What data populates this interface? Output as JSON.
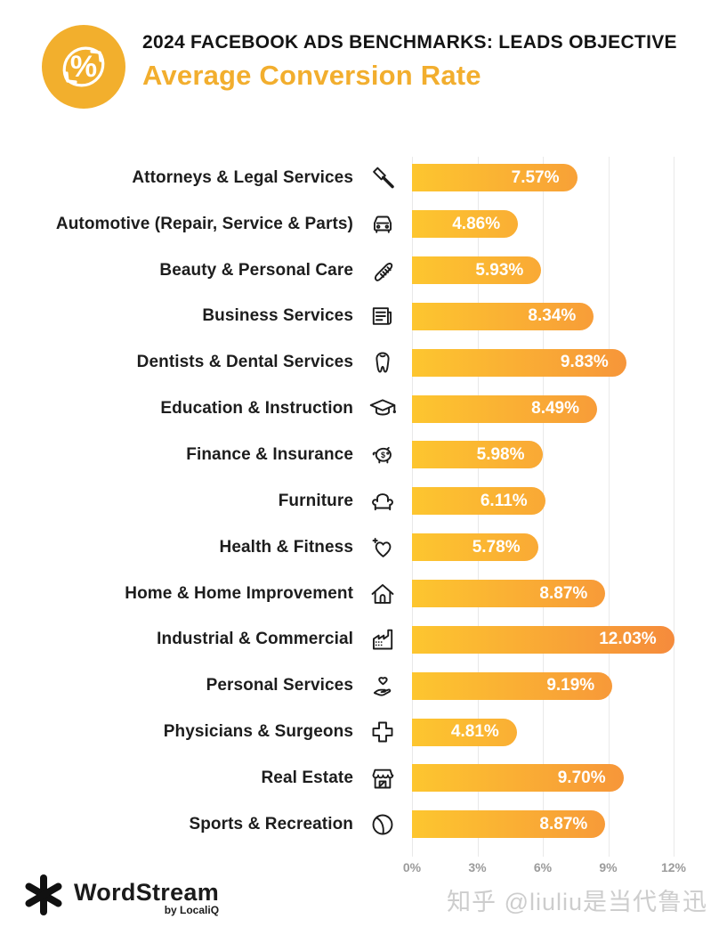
{
  "header": {
    "kicker": "2024 FACEBOOK ADS BENCHMARKS: LEADS OBJECTIVE",
    "title": "Average Conversion Rate",
    "badge_icon": "percent-refresh-icon",
    "accent_color": "#F2AE2E"
  },
  "chart_data": {
    "type": "bar",
    "orientation": "horizontal",
    "title": "Average Conversion Rate",
    "xlabel": "",
    "ylabel": "",
    "xlim": [
      0,
      12
    ],
    "grid": true,
    "bar_color_start": "#FDC62F",
    "bar_color_end": "#F58B3C",
    "x_ticks": [
      "0%",
      "3%",
      "6%",
      "9%",
      "12%"
    ],
    "categories": [
      "Attorneys & Legal Services",
      "Automotive (Repair, Service & Parts)",
      "Beauty & Personal Care",
      "Business Services",
      "Dentists & Dental Services",
      "Education & Instruction",
      "Finance & Insurance",
      "Furniture",
      "Health & Fitness",
      "Home & Home Improvement",
      "Industrial & Commercial",
      "Personal Services",
      "Physicians & Surgeons",
      "Real Estate",
      "Sports & Recreation"
    ],
    "values": [
      7.57,
      4.86,
      5.93,
      8.34,
      9.83,
      8.49,
      5.98,
      6.11,
      5.78,
      8.87,
      12.03,
      9.19,
      4.81,
      9.7,
      8.87
    ],
    "value_labels": [
      "7.57%",
      "4.86%",
      "5.93%",
      "8.34%",
      "9.83%",
      "8.49%",
      "5.98%",
      "6.11%",
      "5.78%",
      "8.87%",
      "12.03%",
      "9.19%",
      "4.81%",
      "9.70%",
      "8.87%"
    ],
    "icons": [
      "gavel-icon",
      "car-icon",
      "comb-icon",
      "newspaper-icon",
      "tooth-icon",
      "graduation-cap-icon",
      "piggy-bank-icon",
      "armchair-icon",
      "heart-plus-icon",
      "house-icon",
      "factory-icon",
      "hand-heart-icon",
      "medical-cross-icon",
      "storefront-icon",
      "ball-icon"
    ]
  },
  "footer": {
    "brand": "WordStream",
    "brand_sub": "by LocaliQ",
    "watermark": "知乎 @liuliu是当代鲁迅"
  }
}
